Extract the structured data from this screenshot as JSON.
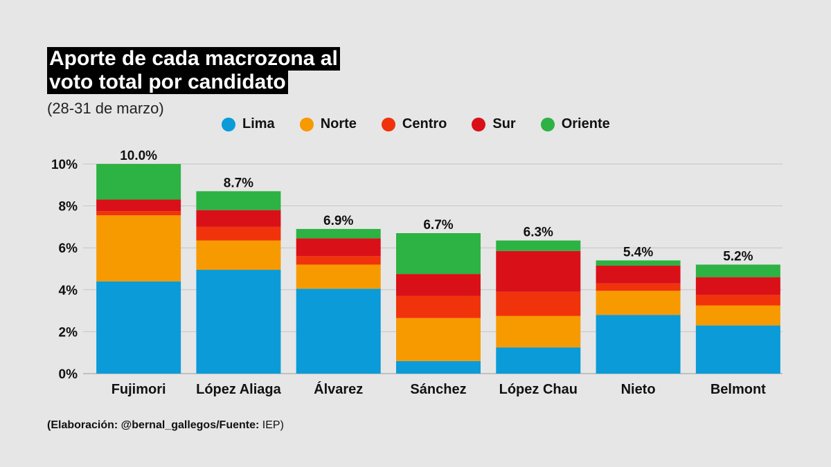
{
  "chart_data": {
    "type": "bar",
    "stacked": true,
    "title_lines": [
      "Aporte de cada macrozona al",
      "voto total por candidato"
    ],
    "subtitle": "(28-31 de marzo)",
    "categories": [
      "Fujimori",
      "López Aliaga",
      "Álvarez",
      "Sánchez",
      "López Chau",
      "Nieto",
      "Belmont"
    ],
    "totals_labels": [
      "10.0%",
      "8.7%",
      "6.9%",
      "6.7%",
      "6.3%",
      "5.4%",
      "5.2%"
    ],
    "series": [
      {
        "name": "Lima",
        "color": "#0a9bd8",
        "values": [
          4.4,
          4.95,
          4.05,
          0.6,
          1.25,
          2.8,
          2.3
        ]
      },
      {
        "name": "Norte",
        "color": "#f79a00",
        "values": [
          3.15,
          1.4,
          1.15,
          2.05,
          1.5,
          1.15,
          0.95
        ]
      },
      {
        "name": "Centro",
        "color": "#f0330a",
        "values": [
          0.2,
          0.65,
          0.4,
          1.05,
          1.15,
          0.35,
          0.5
        ]
      },
      {
        "name": "Sur",
        "color": "#da1018",
        "values": [
          0.55,
          0.8,
          0.85,
          1.05,
          1.95,
          0.85,
          0.85
        ]
      },
      {
        "name": "Oriente",
        "color": "#2db244",
        "values": [
          1.7,
          0.9,
          0.45,
          1.95,
          0.5,
          0.25,
          0.6
        ]
      }
    ],
    "yticks": [
      "0%",
      "2%",
      "4%",
      "6%",
      "8%",
      "10%"
    ],
    "ylim": [
      0,
      10
    ],
    "grid": true,
    "legend_position": "top"
  },
  "footer": {
    "prefix": "(Elaboración: @bernal_gallegos/Fuente:",
    "source": " IEP)"
  }
}
